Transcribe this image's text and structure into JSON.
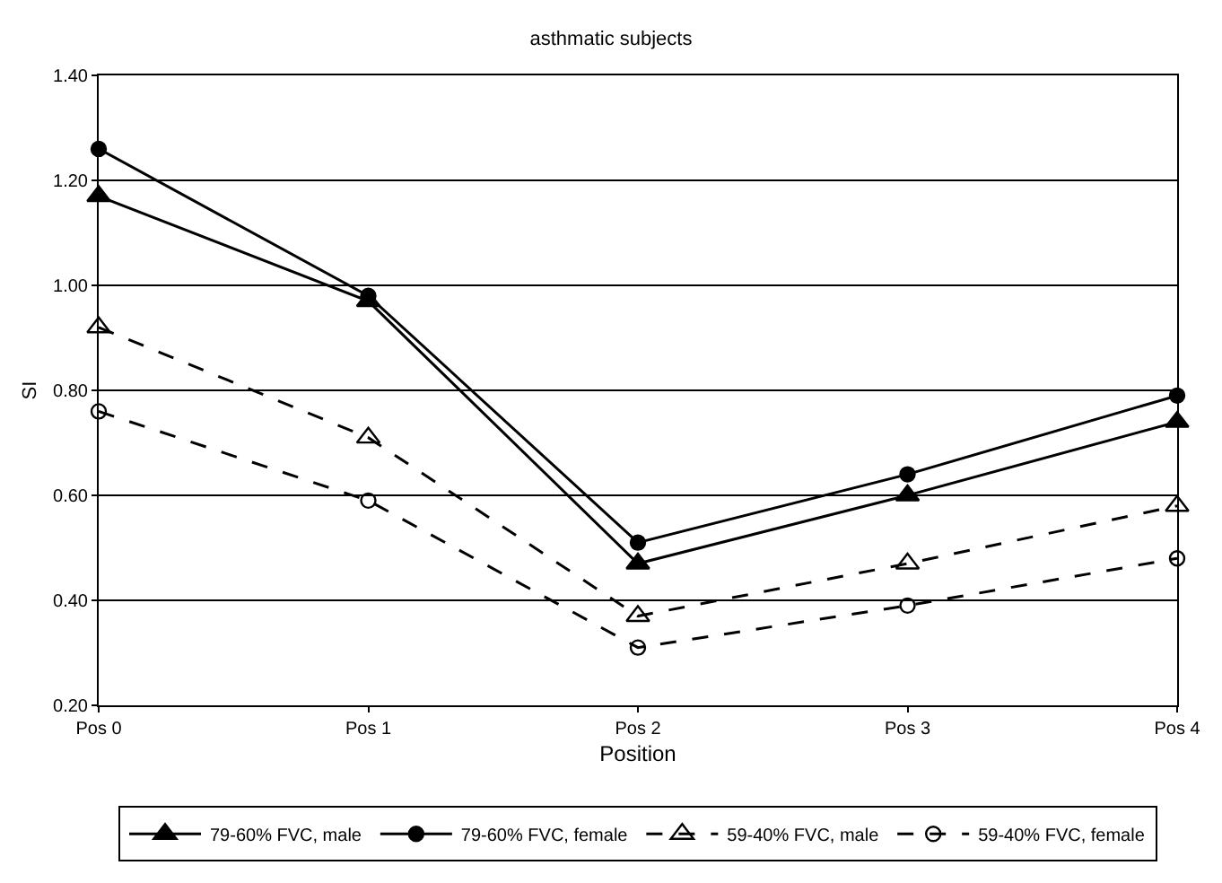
{
  "chart_data": {
    "type": "line",
    "title": "asthmatic subjects",
    "xlabel": "Position",
    "ylabel": "SI",
    "categories": [
      "Pos 0",
      "Pos 1",
      "Pos 2",
      "Pos 3",
      "Pos 4"
    ],
    "series": [
      {
        "name": "79-60% FVC, male",
        "color": "#000000",
        "marker": "triangle",
        "line_style": "solid",
        "values": [
          1.17,
          0.97,
          0.47,
          0.6,
          0.74
        ]
      },
      {
        "name": "79-60% FVC, female",
        "color": "#000000",
        "marker": "circle",
        "line_style": "solid",
        "values": [
          1.26,
          0.98,
          0.51,
          0.64,
          0.79
        ]
      },
      {
        "name": "59-40% FVC, male",
        "color": "#000000",
        "marker": "triangle-open",
        "line_style": "dashed",
        "values": [
          0.92,
          0.71,
          0.37,
          0.47,
          0.58
        ]
      },
      {
        "name": "59-40% FVC, female",
        "color": "#000000",
        "marker": "circle-open",
        "line_style": "dashed",
        "values": [
          0.76,
          0.59,
          0.31,
          0.39,
          0.48
        ]
      }
    ],
    "ylim": [
      0.2,
      1.4
    ],
    "yticks": [
      {
        "value": 0.2,
        "label": "0.20"
      },
      {
        "value": 0.4,
        "label": "0.40"
      },
      {
        "value": 0.6,
        "label": "0.60"
      },
      {
        "value": 0.8,
        "label": "0.80"
      },
      {
        "value": 1.0,
        "label": "1.00"
      },
      {
        "value": 1.2,
        "label": "1.20"
      },
      {
        "value": 1.4,
        "label": "1.40"
      }
    ],
    "grid": "y",
    "legend": "bottom"
  }
}
